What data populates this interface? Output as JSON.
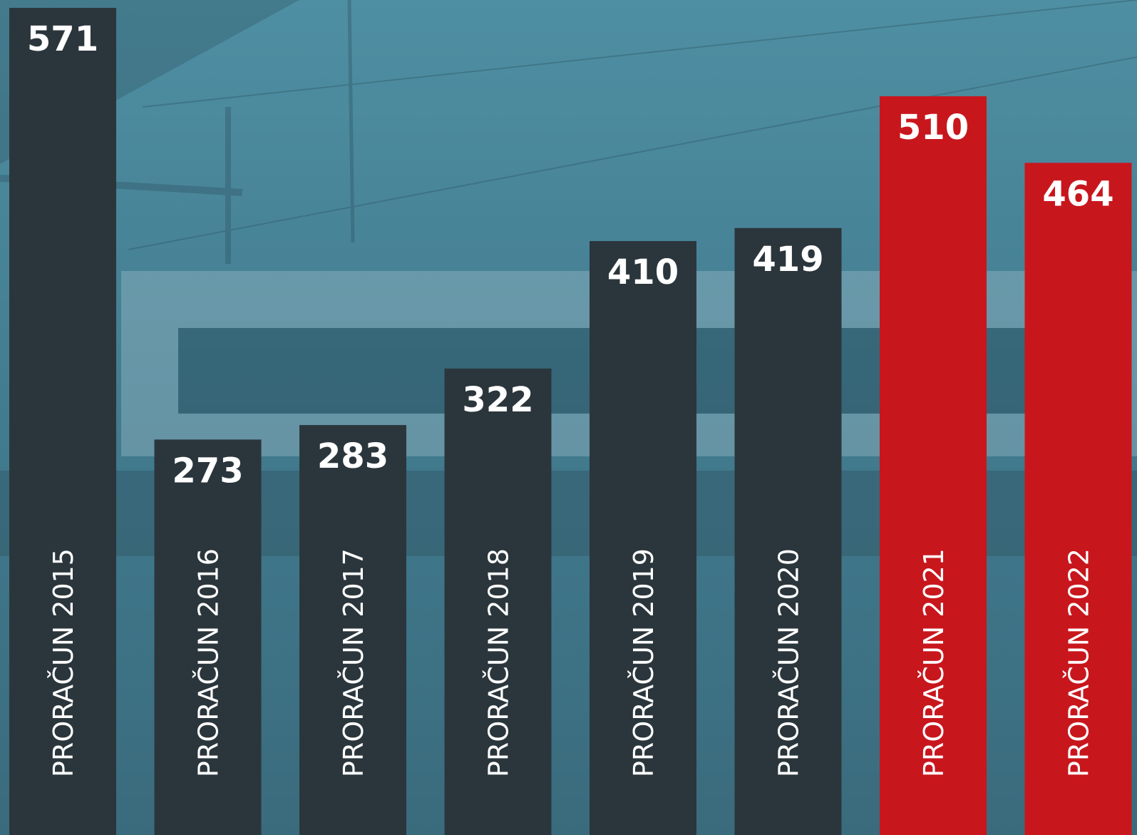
{
  "chart_data": {
    "type": "bar",
    "categories": [
      "PRORAČUN 2015",
      "PRORAČUN 2016",
      "PRORAČUN 2017",
      "PRORAČUN 2018",
      "PRORAČUN 2019",
      "PRORAČUN 2020",
      "PRORAČUN 2021",
      "PRORAČUN 2022"
    ],
    "values": [
      571,
      273,
      283,
      322,
      410,
      419,
      510,
      464
    ],
    "colors": [
      "#2b363c",
      "#2b363c",
      "#2b363c",
      "#2b363c",
      "#2b363c",
      "#2b363c",
      "#c8161d",
      "#c8161d"
    ]
  }
}
